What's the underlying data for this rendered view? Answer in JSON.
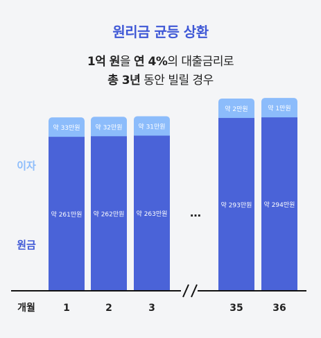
{
  "header": {
    "title": "원리금 균등 상환",
    "line1_parts": [
      {
        "text": "1억 원",
        "bold": true
      },
      {
        "text": "을 ",
        "bold": false
      },
      {
        "text": "연 4%",
        "bold": true
      },
      {
        "text": "의 대출금리로",
        "bold": false
      }
    ],
    "line2_parts": [
      {
        "text": "총 3년",
        "bold": true
      },
      {
        "text": " 동안 빌릴 경우",
        "bold": false
      }
    ]
  },
  "chart_data": {
    "type": "bar",
    "stacked": true,
    "xlabel": "개월",
    "categories": [
      "1",
      "2",
      "3",
      "35",
      "36"
    ],
    "gap_marker": "…",
    "series": [
      {
        "name": "원금",
        "values": [
          261,
          262,
          263,
          293,
          294
        ],
        "labels": [
          "약 261만원",
          "약 262만원",
          "약 263만원",
          "약 293만원",
          "약 294만원"
        ]
      },
      {
        "name": "이자",
        "values": [
          33,
          32,
          31,
          2,
          1
        ],
        "labels": [
          "약 33만원",
          "약 32만원",
          "약 31만원",
          "약 2만원",
          "약 1만원"
        ]
      }
    ],
    "colors": {
      "principal": "#4a63d8",
      "interest": "#8cbcfb",
      "principal_label": "#3f58d6",
      "interest_label": "#8cbcfb"
    }
  }
}
